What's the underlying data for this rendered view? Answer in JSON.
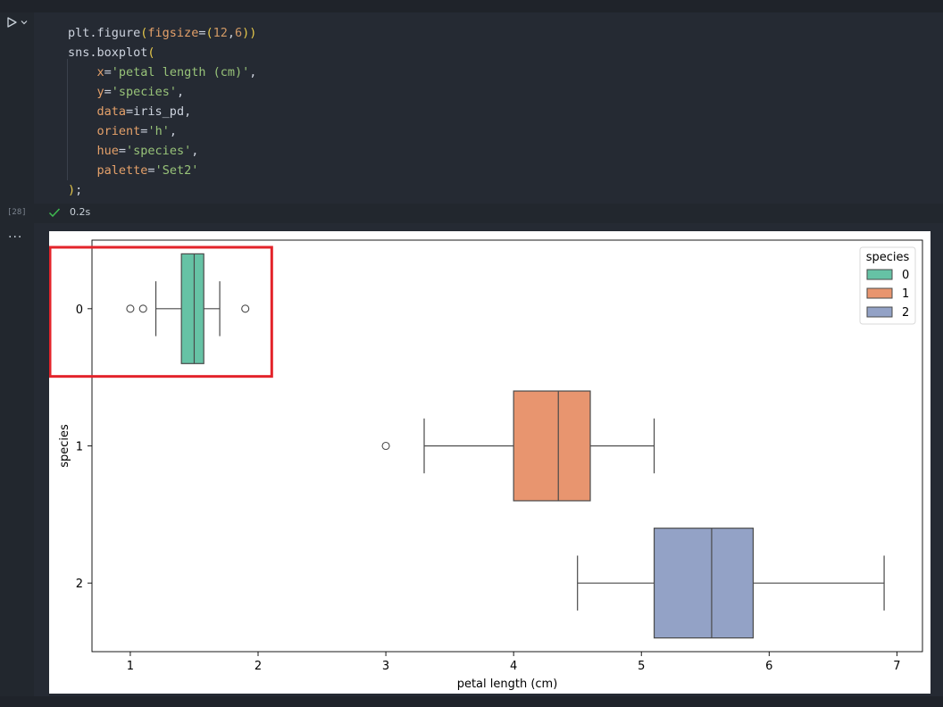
{
  "cell": {
    "execution_count": "[28]",
    "status_time": "0.2s",
    "code_lines": [
      [
        [
          "fn",
          "plt.figure"
        ],
        [
          "paren",
          "("
        ],
        [
          "param",
          "figsize"
        ],
        [
          "punc",
          "="
        ],
        [
          "paren",
          "("
        ],
        [
          "num",
          "12"
        ],
        [
          "punc",
          ","
        ],
        [
          "num",
          "6"
        ],
        [
          "paren",
          "))"
        ]
      ],
      [
        [
          "fn",
          "sns.boxplot"
        ],
        [
          "paren",
          "("
        ]
      ],
      [
        [
          "punc",
          "    "
        ],
        [
          "param",
          "x"
        ],
        [
          "punc",
          "="
        ],
        [
          "str",
          "'petal length (cm)'"
        ],
        [
          "punc",
          ","
        ]
      ],
      [
        [
          "punc",
          "    "
        ],
        [
          "param",
          "y"
        ],
        [
          "punc",
          "="
        ],
        [
          "str",
          "'species'"
        ],
        [
          "punc",
          ","
        ]
      ],
      [
        [
          "punc",
          "    "
        ],
        [
          "param",
          "data"
        ],
        [
          "punc",
          "="
        ],
        [
          "fn",
          "iris_pd"
        ],
        [
          "punc",
          ","
        ]
      ],
      [
        [
          "punc",
          "    "
        ],
        [
          "param",
          "orient"
        ],
        [
          "punc",
          "="
        ],
        [
          "str",
          "'h'"
        ],
        [
          "punc",
          ","
        ]
      ],
      [
        [
          "punc",
          "    "
        ],
        [
          "param",
          "hue"
        ],
        [
          "punc",
          "="
        ],
        [
          "str",
          "'species'"
        ],
        [
          "punc",
          ","
        ]
      ],
      [
        [
          "punc",
          "    "
        ],
        [
          "param",
          "palette"
        ],
        [
          "punc",
          "="
        ],
        [
          "str",
          "'Set2'"
        ]
      ],
      [
        [
          "paren",
          ")"
        ],
        [
          "punc",
          ";"
        ]
      ]
    ]
  },
  "output": {
    "more_label": "···"
  },
  "colors": {
    "highlight_box": "#e3232a",
    "species_0": "#66c2a5",
    "species_1": "#e8956f",
    "species_2": "#93a2c6"
  },
  "chart_data": {
    "type": "box",
    "orientation": "horizontal",
    "xlabel": "petal length (cm)",
    "ylabel": "species",
    "xlim": [
      0.7,
      7.2
    ],
    "xticks": [
      1,
      2,
      3,
      4,
      5,
      6,
      7
    ],
    "categories": [
      "0",
      "1",
      "2"
    ],
    "legend": {
      "title": "species",
      "placement": "top-right",
      "entries": [
        "0",
        "1",
        "2"
      ]
    },
    "series": [
      {
        "name": "0",
        "whisker_low": 1.2,
        "q1": 1.4,
        "median": 1.5,
        "q3": 1.575,
        "whisker_high": 1.7,
        "outliers": [
          1.0,
          1.1,
          1.9
        ]
      },
      {
        "name": "1",
        "whisker_low": 3.3,
        "q1": 4.0,
        "median": 4.35,
        "q3": 4.6,
        "whisker_high": 5.1,
        "outliers": [
          3.0
        ]
      },
      {
        "name": "2",
        "whisker_low": 4.5,
        "q1": 5.1,
        "median": 5.55,
        "q3": 5.875,
        "whisker_high": 6.9,
        "outliers": []
      }
    ]
  }
}
